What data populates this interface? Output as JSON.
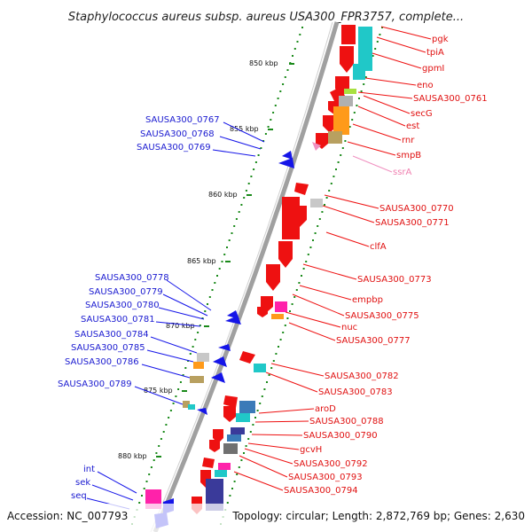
{
  "title": "Staphylococcus aureus subsp. aureus USA300_FPR3757, complete...",
  "footer": {
    "accession": "Accession: NC_007793",
    "summary": "Topology: circular; Length: 2,872,769 bp; Genes: 2,630"
  },
  "scale_labels": [
    "850 kbp",
    "855 kbp",
    "860 kbp",
    "865 kbp",
    "870 kbp",
    "875 kbp",
    "880 kbp"
  ],
  "labels_right": [
    "pgk",
    "tpiA",
    "gpmI",
    "eno",
    "SAUSA300_0761",
    "secG",
    "est",
    "rnr",
    "smpB",
    "ssrA",
    "SAUSA300_0770",
    "SAUSA300_0771",
    "clfA",
    "SAUSA300_0773",
    "empbp",
    "SAUSA300_0775",
    "nuc",
    "SAUSA300_0777",
    "SAUSA300_0782",
    "SAUSA300_0783",
    "aroD",
    "SAUSA300_0788",
    "SAUSA300_0790",
    "gcvH",
    "SAUSA300_0792",
    "SAUSA300_0793",
    "SAUSA300_0794"
  ],
  "labels_left": [
    "SAUSA300_0767",
    "SAUSA300_0768",
    "SAUSA300_0769",
    "SAUSA300_0778",
    "SAUSA300_0779",
    "SAUSA300_0780",
    "SAUSA300_0781",
    "SAUSA300_0784",
    "SAUSA300_0785",
    "SAUSA300_0786",
    "SAUSA300_0789",
    "int",
    "sek",
    "seq"
  ],
  "colors": {
    "backbone": "#9a9a9a",
    "forward_feature": "#ee1111",
    "reverse_feature": "#1515e8",
    "rna_feature": "#f090c0",
    "tick": "#1a8a1a",
    "cyan": "#20c8c8",
    "orange": "#ff9a1a",
    "magenta": "#ff22aa",
    "khaki": "#b8a060",
    "lime": "#a8e040",
    "navy": "#3a3a9a",
    "grey": "#b0b0b0"
  }
}
